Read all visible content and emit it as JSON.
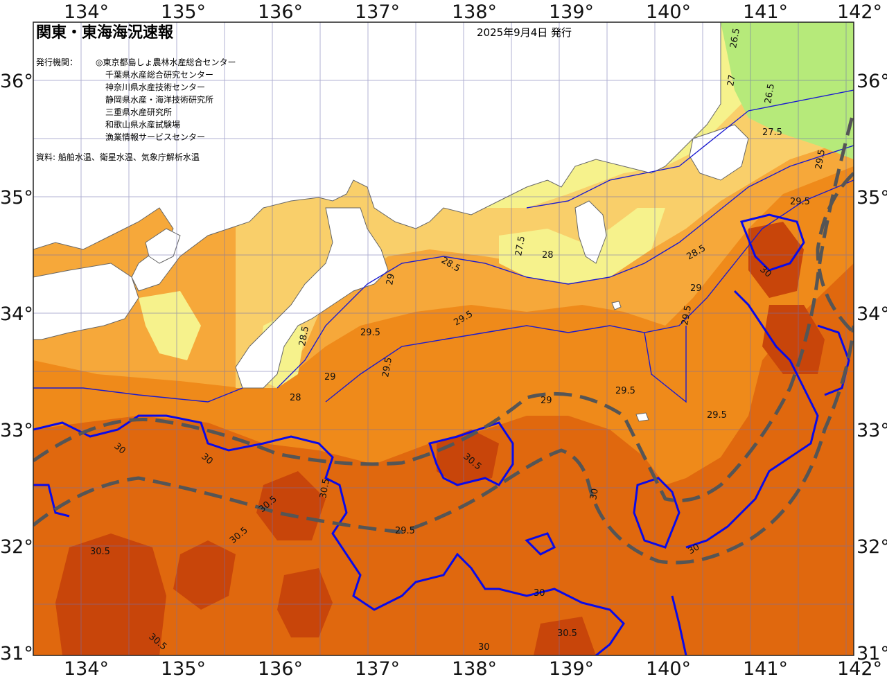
{
  "title": "関東・東海海況速報",
  "issue_date": "2025年9月4日 発行",
  "issuers_label": "発行機関：",
  "issuers": [
    "◎東京都島しょ農林水産総合センター",
    "千葉県水産総合研究センター",
    "神奈川県水産技術センター",
    "静岡県水産・海洋技術研究所",
    "三重県水産研究所",
    "和歌山県水産試験場",
    "漁業情報サービスセンター"
  ],
  "source": "資料: 船舶水温、衛星水温、気象庁解析水温",
  "longitude_labels": [
    "134°",
    "135°",
    "136°",
    "137°",
    "138°",
    "139°",
    "140°",
    "141°",
    "142°"
  ],
  "latitude_labels": [
    "36°",
    "35°",
    "34°",
    "33°",
    "32°",
    "31°"
  ],
  "colors": {
    "sea_30_5": "#c8450a",
    "sea_30": "#e0680e",
    "sea_29_5": "#ef8a1a",
    "sea_29": "#f6a83a",
    "sea_28": "#f9cf6a",
    "sea_27": "#f6f28c",
    "sea_26": "#b6ea7a",
    "land": "#ffffff",
    "isotherm": "#0000ee",
    "current_axis": "#555555",
    "grid": "#7070b0"
  },
  "isotherm_labels": [
    "26.5",
    "27",
    "27.5",
    "28",
    "28.5",
    "29",
    "29.5",
    "30",
    "30.5"
  ],
  "map_labels": [
    {
      "text": "26.5"
    },
    {
      "text": "27"
    },
    {
      "text": "26.5"
    },
    {
      "text": "27.5"
    },
    {
      "text": "29.5"
    },
    {
      "text": "29.5"
    },
    {
      "text": "27.5"
    },
    {
      "text": "28"
    },
    {
      "text": "28.5"
    },
    {
      "text": "29"
    },
    {
      "text": "28.5"
    },
    {
      "text": "29"
    },
    {
      "text": "29.5"
    },
    {
      "text": "29.5"
    },
    {
      "text": "28.5"
    },
    {
      "text": "29"
    },
    {
      "text": "28"
    },
    {
      "text": "29.5"
    },
    {
      "text": "29.5"
    },
    {
      "text": "29"
    },
    {
      "text": "29.5"
    },
    {
      "text": "29.5"
    },
    {
      "text": "30"
    },
    {
      "text": "30.5"
    },
    {
      "text": "30"
    },
    {
      "text": "30.5"
    },
    {
      "text": "30.5"
    },
    {
      "text": "30.5"
    },
    {
      "text": "30.5"
    },
    {
      "text": "30"
    },
    {
      "text": "29.5"
    },
    {
      "text": "30"
    },
    {
      "text": "30"
    },
    {
      "text": "30.5"
    },
    {
      "text": "30"
    },
    {
      "text": "30.5"
    },
    {
      "text": "30"
    }
  ]
}
